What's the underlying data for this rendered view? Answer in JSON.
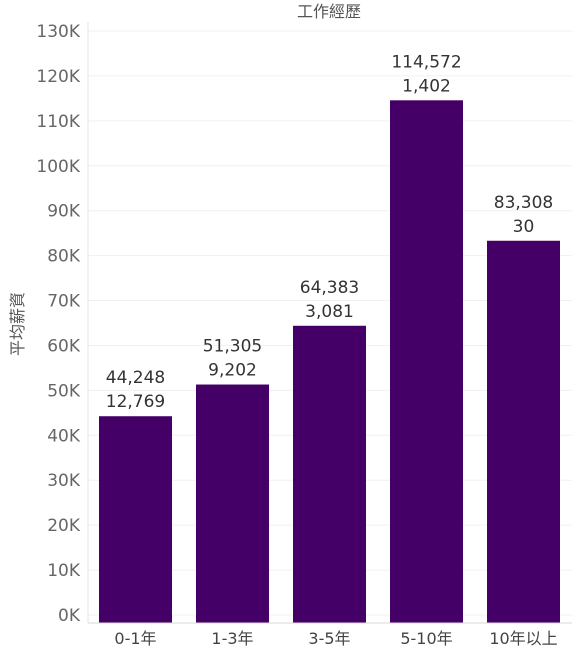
{
  "chart_data": {
    "type": "bar",
    "title": "工作經歷",
    "xlabel": "",
    "ylabel": "平均薪資",
    "categories": [
      "0-1年",
      "1-3年",
      "3-5年",
      "5-10年",
      "10年以上"
    ],
    "series": [
      {
        "values": [
          44248,
          51305,
          64383,
          114572,
          83308
        ],
        "labels": [
          "44,248",
          "51,305",
          "64,383",
          "114,572",
          "83,308"
        ]
      },
      {
        "values": [
          12769,
          9202,
          3081,
          1402,
          30
        ],
        "labels": [
          "12,769",
          "9,202",
          "3,081",
          "1,402",
          "30"
        ]
      }
    ],
    "ylim": [
      0,
      130000
    ],
    "yticks": [
      0,
      10000,
      20000,
      30000,
      40000,
      50000,
      60000,
      70000,
      80000,
      90000,
      100000,
      110000,
      120000,
      130000
    ],
    "ytick_labels": [
      "0K",
      "10K",
      "20K",
      "30K",
      "40K",
      "50K",
      "60K",
      "70K",
      "80K",
      "90K",
      "100K",
      "110K",
      "120K",
      "130K"
    ],
    "grid": true,
    "bar_color": "#440066"
  }
}
